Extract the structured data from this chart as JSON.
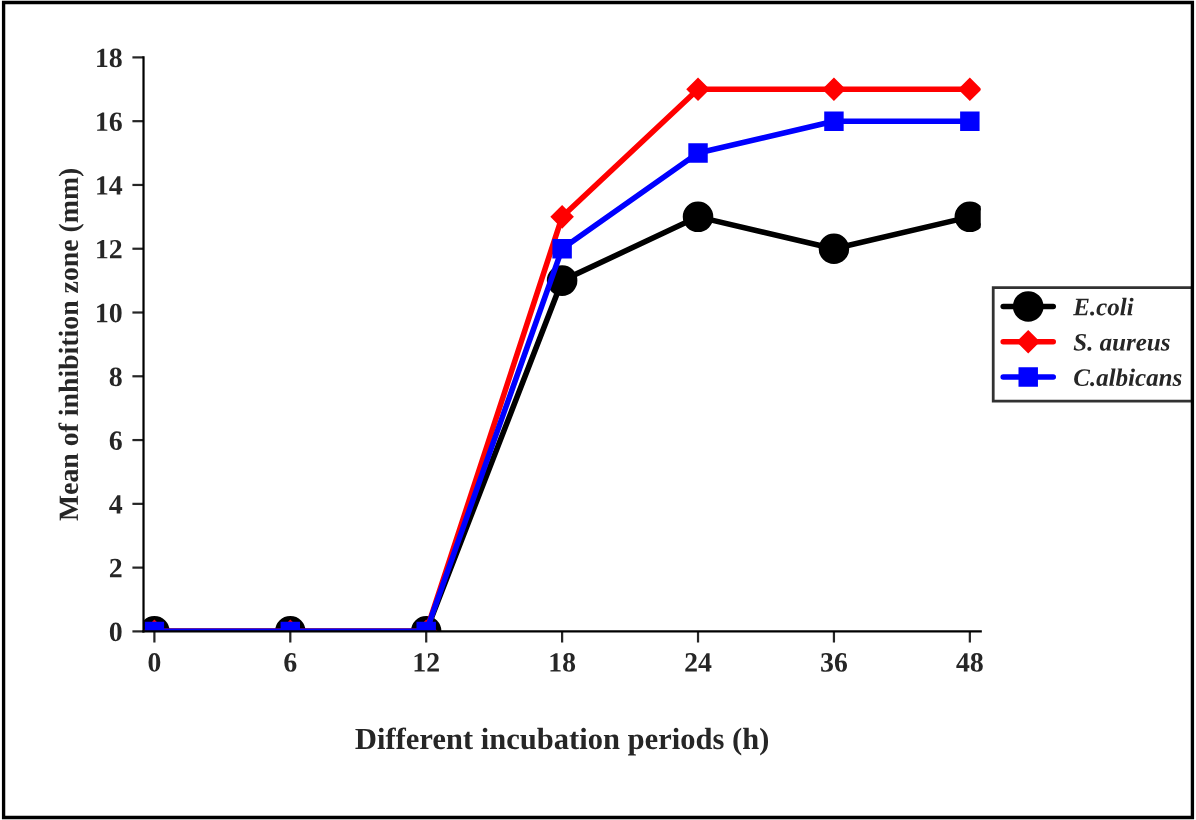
{
  "chart_data": {
    "type": "line",
    "xlabel": "Different incubation periods (h)",
    "ylabel": "Mean of inhibition zone (mm)",
    "categories": [
      "0",
      "6",
      "12",
      "18",
      "24",
      "36",
      "48"
    ],
    "series": [
      {
        "name": "E.coli",
        "color": "#000000",
        "marker": "circle",
        "values": [
          0,
          0,
          0,
          11,
          13,
          12,
          13
        ]
      },
      {
        "name": "S. aureus",
        "color": "#ff0000",
        "marker": "diamond",
        "values": [
          0,
          0,
          0,
          13,
          17,
          17,
          17
        ]
      },
      {
        "name": "C.albicans",
        "color": "#0000ff",
        "marker": "square",
        "values": [
          0,
          0,
          0,
          12,
          15,
          16,
          16
        ]
      }
    ],
    "ylim": [
      0,
      18
    ],
    "yticks": [
      0,
      2,
      4,
      6,
      8,
      10,
      12,
      14,
      16,
      18
    ],
    "grid": false,
    "legend": "right",
    "line_style": "solid"
  }
}
